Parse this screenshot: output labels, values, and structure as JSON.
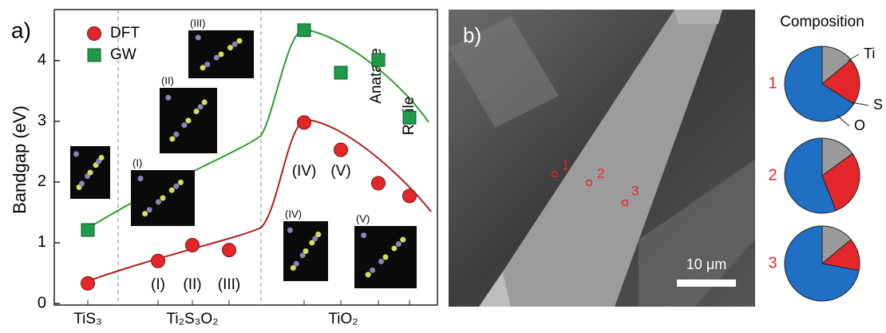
{
  "chart_data": [
    {
      "type": "scatter",
      "panel_label": "a)",
      "ylabel": "Bandgap (eV)",
      "ylim": [
        0,
        4.8
      ],
      "yticks": [
        0,
        1,
        2,
        3,
        4
      ],
      "categories": [
        null,
        "(I)",
        "(II)",
        "(III)",
        "(IV)",
        "(V)",
        "Anatase",
        "Rutile"
      ],
      "groups": [
        "TiS₃",
        "Ti₂S₃O₂",
        "TiO₂"
      ],
      "series": [
        {
          "name": "DFT",
          "color": "#e3262b",
          "marker": "circle",
          "values": [
            0.33,
            0.7,
            0.96,
            0.88,
            2.98,
            2.53,
            1.98,
            1.77
          ]
        },
        {
          "name": "GW",
          "color": "#1e9a4a",
          "marker": "square",
          "values": [
            1.21,
            null,
            null,
            null,
            4.5,
            3.8,
            4.01,
            3.06
          ]
        }
      ],
      "insets": [
        "(III)",
        "(II)",
        "(I)",
        "(IV)",
        "(V)"
      ]
    },
    {
      "type": "image",
      "panel_label": "b)",
      "point_labels": [
        "1",
        "2",
        "3"
      ],
      "scale_bar": "10 μm"
    },
    {
      "type": "pie",
      "title": "Composition",
      "categories": [
        "Ti",
        "S",
        "O"
      ],
      "colors": [
        "#9a9a9a",
        "#e3262b",
        "#1f6fc4"
      ],
      "pies": [
        {
          "label": "1",
          "values": [
            14,
            20,
            66
          ]
        },
        {
          "label": "2",
          "values": [
            15,
            29,
            56
          ]
        },
        {
          "label": "3",
          "values": [
            14,
            14,
            72
          ]
        }
      ]
    }
  ]
}
